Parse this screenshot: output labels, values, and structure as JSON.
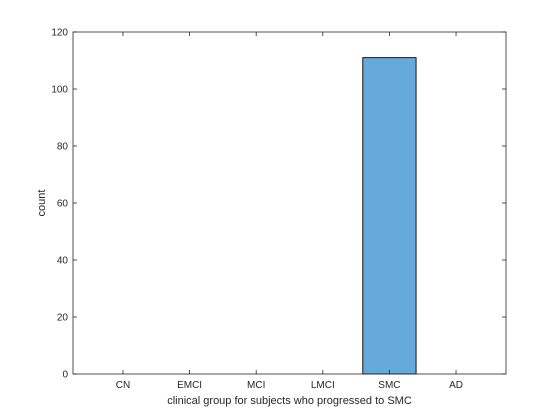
{
  "chart_data": {
    "type": "bar",
    "categories": [
      "CN",
      "EMCI",
      "MCI",
      "LMCI",
      "SMC",
      "AD"
    ],
    "values": [
      0,
      0,
      0,
      0,
      111,
      0
    ],
    "xlabel": "clinical group for subjects who progressed to SMC",
    "ylabel": "count",
    "ylim": [
      0,
      120
    ],
    "yticks": [
      0,
      20,
      40,
      60,
      80,
      100,
      120
    ],
    "grid": false,
    "bar_color": "#66aadb",
    "edge_color": "#000000"
  }
}
